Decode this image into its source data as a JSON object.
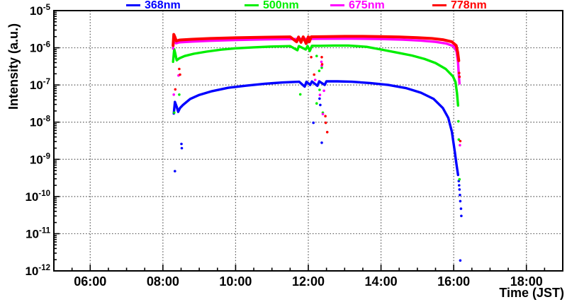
{
  "chart_data": {
    "type": "scatter",
    "title": "",
    "xlabel": "Time (JST)",
    "ylabel": "Intensity (a.u.)",
    "x_axis": {
      "range_hours": [
        5,
        19
      ],
      "major_ticks": [
        {
          "hours": 6,
          "label": "06:00"
        },
        {
          "hours": 8,
          "label": "08:00"
        },
        {
          "hours": 10,
          "label": "10:00"
        },
        {
          "hours": 12,
          "label": "12:00"
        },
        {
          "hours": 14,
          "label": "14:00"
        },
        {
          "hours": 16,
          "label": "16:00"
        },
        {
          "hours": 18,
          "label": "18:00"
        }
      ],
      "minor_step_hours": 0.5,
      "grid": true
    },
    "y_axis": {
      "scale": "log",
      "min": 1e-12,
      "max": 1e-05,
      "decade_exponents": [
        -5,
        -6,
        -7,
        -8,
        -9,
        -10,
        -11,
        -12
      ],
      "grid": true
    },
    "legend": {
      "position": "top",
      "entries": [
        "368nm",
        "500nm",
        "675nm",
        "778nm"
      ]
    },
    "series": [
      {
        "name": "368nm",
        "color": "#0000ff",
        "curve": [
          [
            8.3,
            1.7e-08
          ],
          [
            8.33,
            3.5e-08
          ],
          [
            8.38,
            2.6e-08
          ],
          [
            8.42,
            1.9e-08
          ],
          [
            8.47,
            2.4e-08
          ],
          [
            8.55,
            2.9e-08
          ],
          [
            8.75,
            4.2e-08
          ],
          [
            9.0,
            5.4e-08
          ],
          [
            9.35,
            6.8e-08
          ],
          [
            9.8,
            8.4e-08
          ],
          [
            10.3,
            9.6e-08
          ],
          [
            10.8,
            1.08e-07
          ],
          [
            11.3,
            1.17e-07
          ],
          [
            11.75,
            1.22e-07
          ],
          [
            11.9,
            9e-08
          ],
          [
            11.95,
            1.22e-07
          ],
          [
            12.05,
            1e-07
          ],
          [
            12.1,
            1.24e-07
          ],
          [
            12.25,
            9.5e-08
          ],
          [
            12.3,
            1.25e-07
          ],
          [
            12.45,
            1e-07
          ],
          [
            12.5,
            1.26e-07
          ],
          [
            12.8,
            1.25e-07
          ],
          [
            13.2,
            1.22e-07
          ],
          [
            13.7,
            1.13e-07
          ],
          [
            14.2,
            1e-07
          ],
          [
            14.7,
            8.2e-08
          ],
          [
            15.1,
            6.2e-08
          ],
          [
            15.45,
            4.2e-08
          ],
          [
            15.7,
            2.4e-08
          ],
          [
            15.85,
            1.3e-08
          ],
          [
            15.95,
            5.5e-09
          ],
          [
            16.03,
            1.6e-09
          ],
          [
            16.08,
            7e-10
          ],
          [
            16.12,
            3.8e-10
          ]
        ],
        "outliers": [
          [
            8.51,
            2.6e-09
          ],
          [
            8.52,
            2e-09
          ],
          [
            8.33,
            4.8e-10
          ],
          [
            12.14,
            9.6e-09
          ],
          [
            12.31,
            4.3e-08
          ],
          [
            12.33,
            2.9e-08
          ],
          [
            12.37,
            2.8e-09
          ],
          [
            16.14,
            2.6e-10
          ],
          [
            16.15,
            2e-10
          ],
          [
            16.16,
            1.55e-10
          ],
          [
            16.17,
            1.1e-10
          ],
          [
            16.18,
            7.5e-11
          ],
          [
            16.2,
            4.7e-11
          ],
          [
            16.21,
            3e-11
          ],
          [
            16.18,
            1.9e-12
          ]
        ]
      },
      {
        "name": "500nm",
        "color": "#00ee00",
        "curve": [
          [
            8.28,
            4.2e-07
          ],
          [
            8.31,
            9.2e-07
          ],
          [
            8.34,
            7e-07
          ],
          [
            8.38,
            4.6e-07
          ],
          [
            8.45,
            5.2e-07
          ],
          [
            8.6,
            6e-07
          ],
          [
            8.85,
            6.9e-07
          ],
          [
            9.2,
            7.9e-07
          ],
          [
            9.6,
            8.9e-07
          ],
          [
            10.0,
            9.7e-07
          ],
          [
            10.5,
            1.03e-06
          ],
          [
            11.0,
            1.08e-06
          ],
          [
            11.5,
            1.11e-06
          ],
          [
            11.7,
            8.6e-07
          ],
          [
            11.74,
            1.11e-06
          ],
          [
            11.93,
            9e-07
          ],
          [
            11.98,
            1.12e-06
          ],
          [
            12.04,
            8.2e-07
          ],
          [
            12.1,
            1.13e-06
          ],
          [
            12.3,
            1.13e-06
          ],
          [
            12.7,
            1.15e-06
          ],
          [
            13.1,
            1.15e-06
          ],
          [
            13.6,
            1.06e-06
          ],
          [
            14.0,
            9e-07
          ],
          [
            14.45,
            7.4e-07
          ],
          [
            14.85,
            6.2e-07
          ],
          [
            15.2,
            5e-07
          ],
          [
            15.5,
            3.9e-07
          ],
          [
            15.78,
            2.7e-07
          ],
          [
            15.98,
            1.7e-07
          ],
          [
            16.05,
            1.2e-07
          ],
          [
            16.09,
            6e-08
          ],
          [
            16.12,
            2.8e-08
          ]
        ],
        "outliers": [
          [
            8.31,
            1.8e-08
          ],
          [
            8.45,
            5.5e-08
          ],
          [
            11.78,
            5.6e-08
          ],
          [
            12.23,
            6e-07
          ],
          [
            12.3,
            2.4e-07
          ],
          [
            12.31,
            7.4e-08
          ],
          [
            12.23,
            3.2e-08
          ],
          [
            12.37,
            2.9e-07
          ],
          [
            12.4,
            1.8e-08
          ],
          [
            16.13,
            1.05e-08
          ],
          [
            16.14,
            3.4e-09
          ],
          [
            16.16,
            2.9e-10
          ]
        ]
      },
      {
        "name": "675nm",
        "color": "#ff00ff",
        "curve": [
          [
            8.28,
            9.5e-07
          ],
          [
            8.3,
            2.05e-06
          ],
          [
            8.36,
            1.32e-06
          ],
          [
            8.45,
            1.4e-06
          ],
          [
            8.8,
            1.47e-06
          ],
          [
            9.3,
            1.54e-06
          ],
          [
            10.0,
            1.62e-06
          ],
          [
            10.8,
            1.68e-06
          ],
          [
            11.6,
            1.72e-06
          ],
          [
            12.4,
            1.75e-06
          ],
          [
            13.2,
            1.76e-06
          ],
          [
            14.0,
            1.72e-06
          ],
          [
            14.6,
            1.65e-06
          ],
          [
            15.1,
            1.56e-06
          ],
          [
            15.5,
            1.44e-06
          ],
          [
            15.8,
            1.3e-06
          ],
          [
            16.0,
            1.1e-06
          ],
          [
            16.08,
            8e-07
          ],
          [
            16.12,
            4e-07
          ],
          [
            16.14,
            1.9e-07
          ],
          [
            16.16,
            1.1e-07
          ]
        ],
        "outliers": [
          [
            8.3,
            5.5e-08
          ],
          [
            8.43,
            1.8e-07
          ],
          [
            12.19,
            1.37e-07
          ],
          [
            12.36,
            4.2e-07
          ],
          [
            12.37,
            3.3e-07
          ],
          [
            12.32,
            5.4e-08
          ],
          [
            12.43,
            7e-08
          ],
          [
            12.4,
            1.65e-08
          ],
          [
            16.17,
            2.4e-09
          ]
        ]
      },
      {
        "name": "778nm",
        "color": "#ff0000",
        "curve": [
          [
            8.28,
            1.15e-06
          ],
          [
            8.3,
            2.3e-06
          ],
          [
            8.33,
            1.95e-06
          ],
          [
            8.37,
            1.52e-06
          ],
          [
            8.45,
            1.62e-06
          ],
          [
            8.8,
            1.7e-06
          ],
          [
            9.3,
            1.78e-06
          ],
          [
            10.0,
            1.86e-06
          ],
          [
            10.8,
            1.93e-06
          ],
          [
            11.5,
            1.97e-06
          ],
          [
            11.68,
            1.45e-06
          ],
          [
            11.73,
            1.95e-06
          ],
          [
            11.8,
            1.4e-06
          ],
          [
            11.86,
            1.97e-06
          ],
          [
            11.94,
            1.3e-06
          ],
          [
            12.0,
            1.98e-06
          ],
          [
            12.03,
            1.45e-06
          ],
          [
            12.08,
            1.98e-06
          ],
          [
            12.5,
            2e-06
          ],
          [
            13.0,
            2.03e-06
          ],
          [
            13.5,
            2.03e-06
          ],
          [
            14.0,
            2e-06
          ],
          [
            14.5,
            1.95e-06
          ],
          [
            15.0,
            1.88e-06
          ],
          [
            15.4,
            1.78e-06
          ],
          [
            15.7,
            1.65e-06
          ],
          [
            15.95,
            1.45e-06
          ],
          [
            16.07,
            1.15e-06
          ],
          [
            16.11,
            7.5e-07
          ],
          [
            16.14,
            4.5e-07
          ]
        ],
        "outliers": [
          [
            8.34,
            7.6e-08
          ],
          [
            8.45,
            2.7e-07
          ],
          [
            8.47,
            1.9e-07
          ],
          [
            12.08,
            5.6e-07
          ],
          [
            12.16,
            1.9e-07
          ],
          [
            12.37,
            5.6e-07
          ],
          [
            12.38,
            3.6e-07
          ],
          [
            12.47,
            1.45e-08
          ],
          [
            12.48,
            9.6e-09
          ],
          [
            12.52,
            5.4e-09
          ],
          [
            16.15,
            2.1e-07
          ],
          [
            16.16,
            1.66e-07
          ],
          [
            16.18,
            3.1e-09
          ]
        ]
      }
    ]
  }
}
